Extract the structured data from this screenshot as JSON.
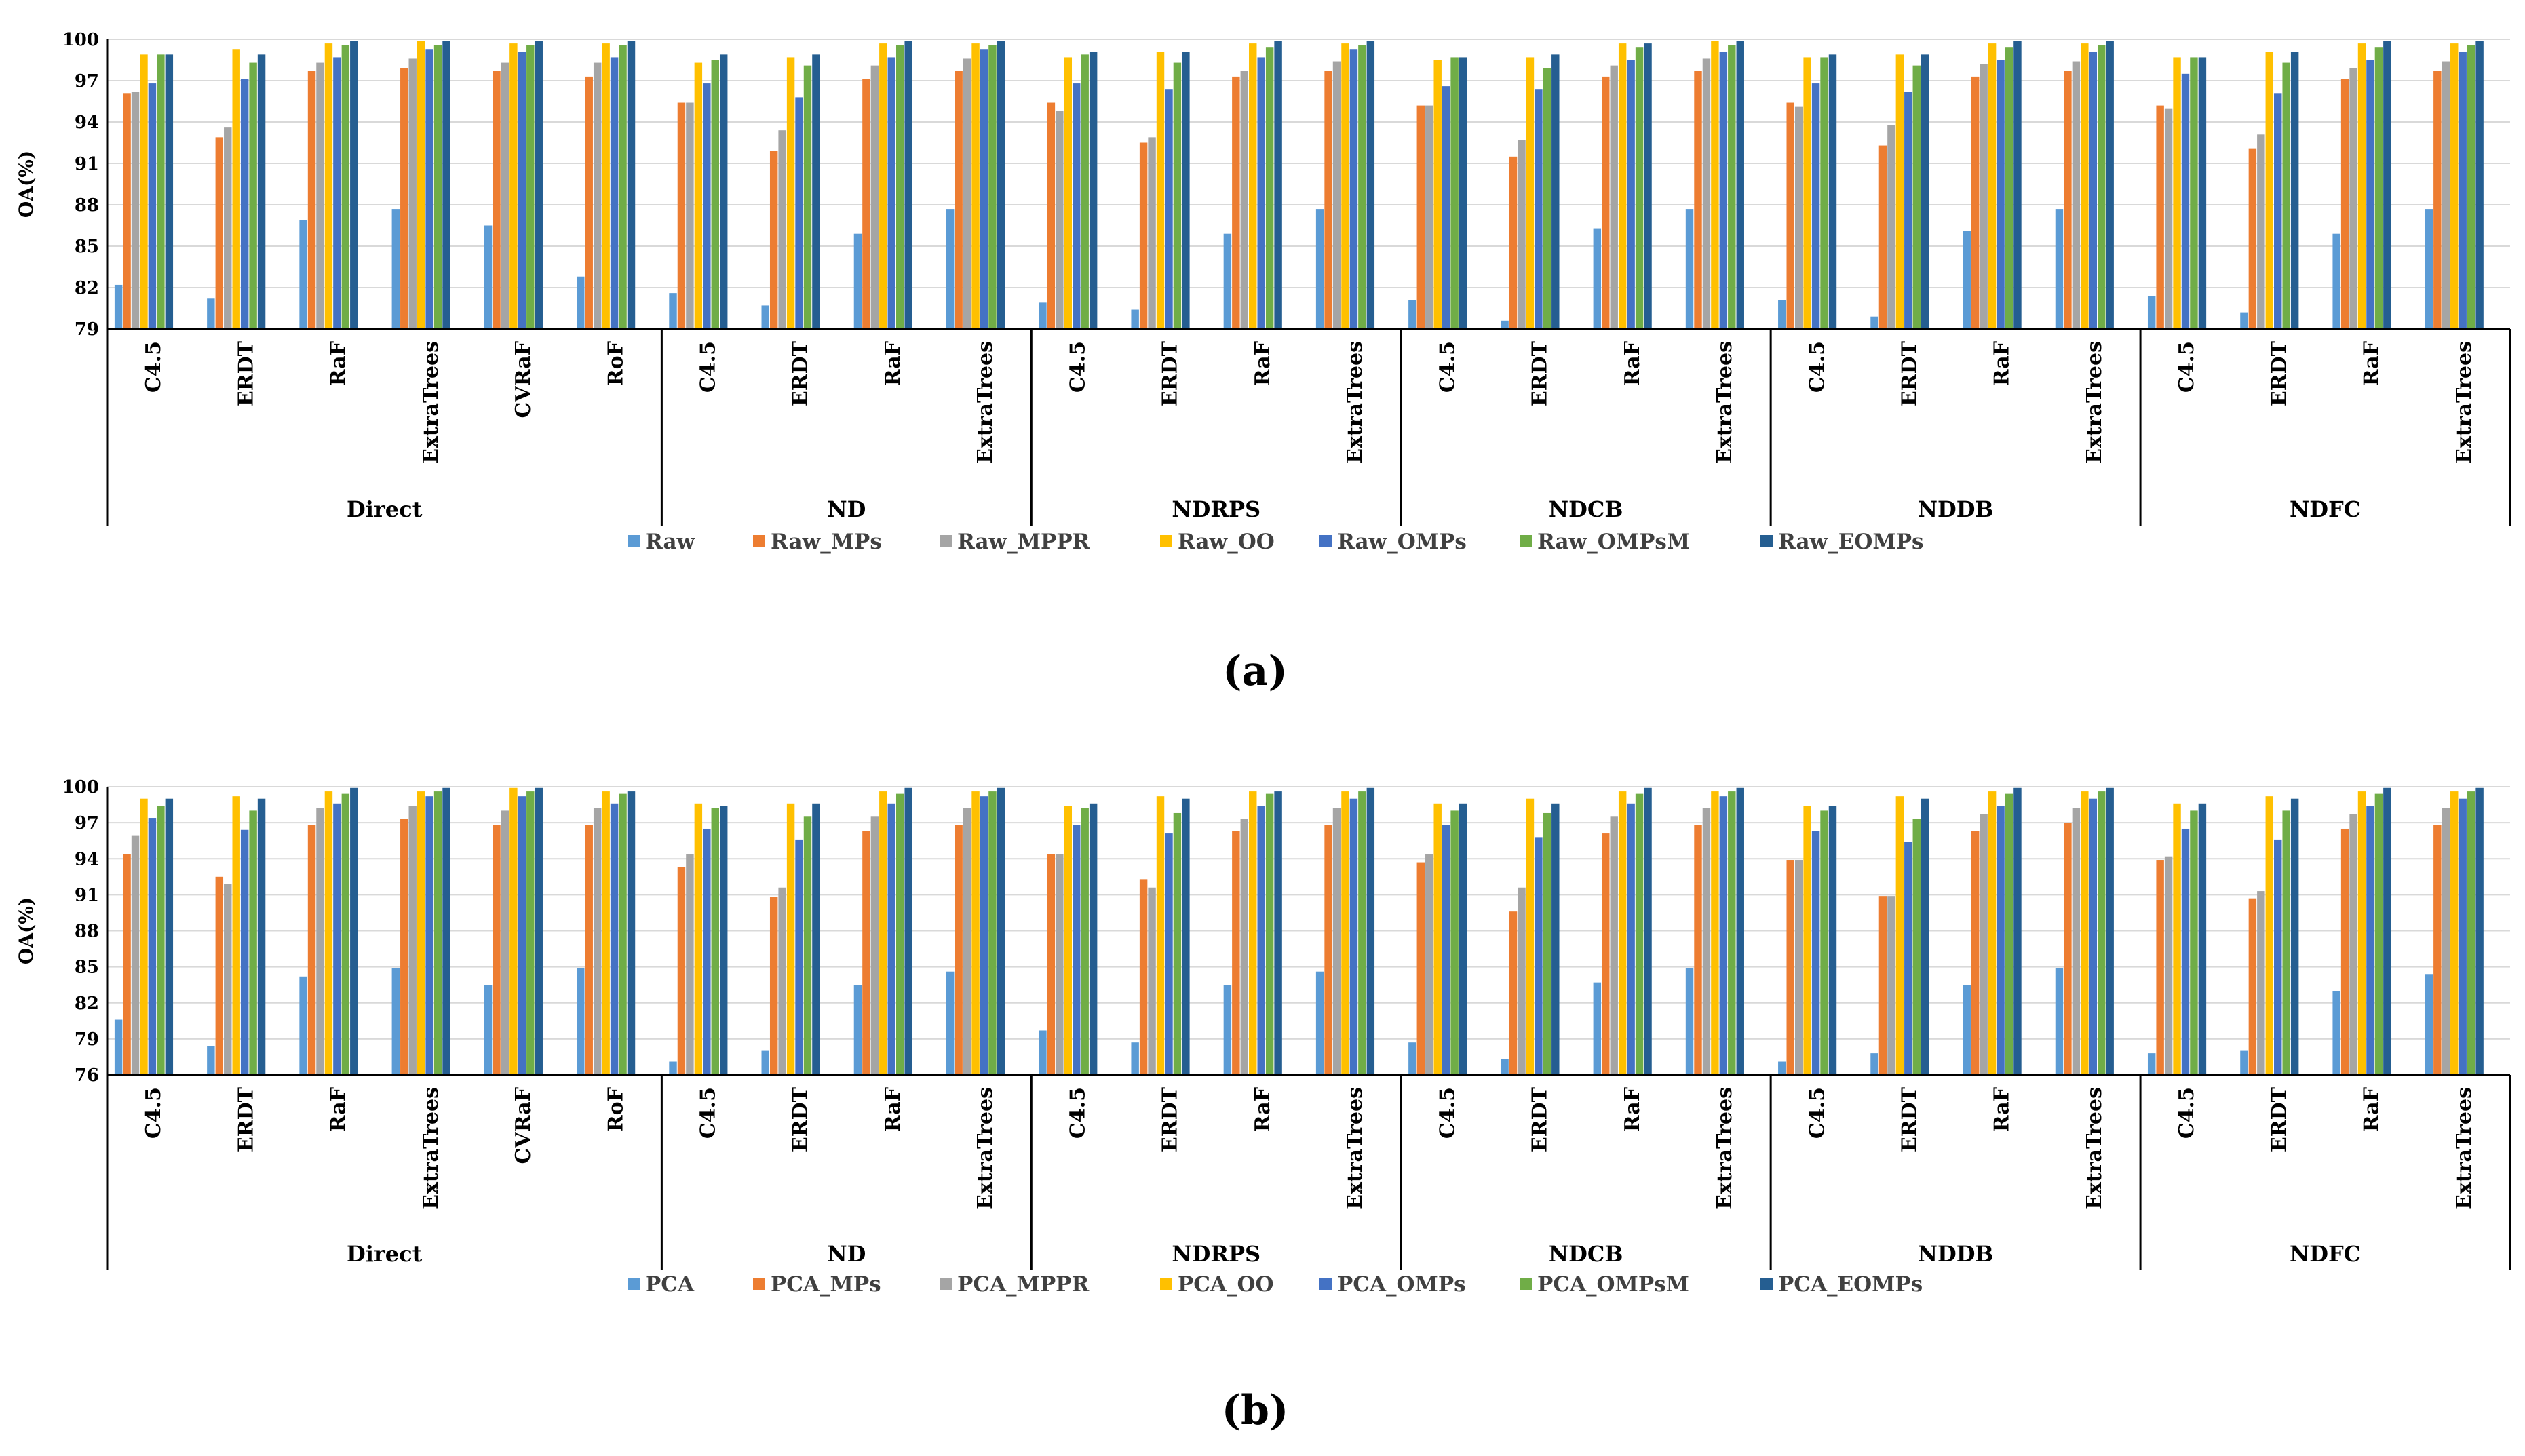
{
  "chart_data": [
    {
      "type": "bar",
      "panel_label": "(a)",
      "ylabel": "OA(%)",
      "ylim": [
        79,
        100
      ],
      "yticks": [
        79,
        82,
        85,
        88,
        91,
        94,
        97,
        100
      ],
      "groups": [
        {
          "name": "Direct",
          "categories": [
            "C4.5",
            "ERDT",
            "RaF",
            "ExtraTrees",
            "CVRaF",
            "RoF"
          ]
        },
        {
          "name": "ND",
          "categories": [
            "C4.5",
            "ERDT",
            "RaF",
            "ExtraTrees"
          ]
        },
        {
          "name": "NDRPS",
          "categories": [
            "C4.5",
            "ERDT",
            "RaF",
            "ExtraTrees"
          ]
        },
        {
          "name": "NDCB",
          "categories": [
            "C4.5",
            "ERDT",
            "RaF",
            "ExtraTrees"
          ]
        },
        {
          "name": "NDDB",
          "categories": [
            "C4.5",
            "ERDT",
            "RaF",
            "ExtraTrees"
          ]
        },
        {
          "name": "NDFC",
          "categories": [
            "C4.5",
            "ERDT",
            "RaF",
            "ExtraTrees"
          ]
        }
      ],
      "series": [
        {
          "name": "Raw",
          "color": "#5B9BD5",
          "values": [
            82.2,
            81.2,
            86.9,
            87.7,
            86.5,
            82.8,
            81.6,
            80.7,
            85.9,
            87.7,
            80.9,
            80.4,
            85.9,
            87.7,
            81.1,
            79.6,
            86.3,
            87.7,
            81.1,
            79.9,
            86.1,
            87.7,
            81.4,
            80.2,
            85.9,
            87.7
          ]
        },
        {
          "name": "Raw_MPs",
          "color": "#ED7D31",
          "values": [
            96.1,
            92.9,
            97.7,
            97.9,
            97.7,
            97.3,
            95.4,
            91.9,
            97.1,
            97.7,
            95.4,
            92.5,
            97.3,
            97.7,
            95.2,
            91.5,
            97.3,
            97.7,
            95.4,
            92.3,
            97.3,
            97.7,
            95.2,
            92.1,
            97.1,
            97.7
          ]
        },
        {
          "name": "Raw_MPPR",
          "color": "#A5A5A5",
          "values": [
            96.2,
            93.6,
            98.3,
            98.6,
            98.3,
            98.3,
            95.4,
            93.4,
            98.1,
            98.6,
            94.8,
            92.9,
            97.7,
            98.4,
            95.2,
            92.7,
            98.1,
            98.6,
            95.1,
            93.8,
            98.2,
            98.4,
            95.0,
            93.1,
            97.9,
            98.4
          ]
        },
        {
          "name": "Raw_OO",
          "color": "#FFC000",
          "values": [
            98.9,
            99.3,
            99.7,
            99.9,
            99.7,
            99.7,
            98.3,
            98.7,
            99.7,
            99.7,
            98.7,
            99.1,
            99.7,
            99.7,
            98.5,
            98.7,
            99.7,
            99.9,
            98.7,
            98.9,
            99.7,
            99.7,
            98.7,
            99.1,
            99.7,
            99.7
          ]
        },
        {
          "name": "Raw_OMPs",
          "color": "#4472C4",
          "values": [
            96.8,
            97.1,
            98.7,
            99.3,
            99.1,
            98.7,
            96.8,
            95.8,
            98.7,
            99.3,
            96.8,
            96.4,
            98.7,
            99.3,
            96.6,
            96.4,
            98.5,
            99.1,
            96.8,
            96.2,
            98.5,
            99.1,
            97.5,
            96.1,
            98.5,
            99.1
          ]
        },
        {
          "name": "Raw_OMPsM",
          "color": "#70AD47",
          "values": [
            98.9,
            98.3,
            99.6,
            99.6,
            99.6,
            99.6,
            98.5,
            98.1,
            99.6,
            99.6,
            98.9,
            98.3,
            99.4,
            99.6,
            98.7,
            97.9,
            99.4,
            99.6,
            98.7,
            98.1,
            99.4,
            99.6,
            98.7,
            98.3,
            99.4,
            99.6
          ]
        },
        {
          "name": "Raw_EOMPs",
          "color": "#255E91",
          "values": [
            98.9,
            98.9,
            99.9,
            99.9,
            99.9,
            99.9,
            98.9,
            98.9,
            99.9,
            99.9,
            99.1,
            99.1,
            99.9,
            99.9,
            98.7,
            98.9,
            99.7,
            99.9,
            98.9,
            98.9,
            99.9,
            99.9,
            98.7,
            99.1,
            99.9,
            99.9
          ]
        }
      ]
    },
    {
      "type": "bar",
      "panel_label": "(b)",
      "ylabel": "OA(%)",
      "ylim": [
        76,
        100
      ],
      "yticks": [
        76,
        79,
        82,
        85,
        88,
        91,
        94,
        97,
        100
      ],
      "groups": [
        {
          "name": "Direct",
          "categories": [
            "C4.5",
            "ERDT",
            "RaF",
            "ExtraTrees",
            "CVRaF",
            "RoF"
          ]
        },
        {
          "name": "ND",
          "categories": [
            "C4.5",
            "ERDT",
            "RaF",
            "ExtraTrees"
          ]
        },
        {
          "name": "NDRPS",
          "categories": [
            "C4.5",
            "ERDT",
            "RaF",
            "ExtraTrees"
          ]
        },
        {
          "name": "NDCB",
          "categories": [
            "C4.5",
            "ERDT",
            "RaF",
            "ExtraTrees"
          ]
        },
        {
          "name": "NDDB",
          "categories": [
            "C4.5",
            "ERDT",
            "RaF",
            "ExtraTrees"
          ]
        },
        {
          "name": "NDFC",
          "categories": [
            "C4.5",
            "ERDT",
            "RaF",
            "ExtraTrees"
          ]
        }
      ],
      "series": [
        {
          "name": "PCA",
          "color": "#5B9BD5",
          "values": [
            80.6,
            78.4,
            84.2,
            84.9,
            83.5,
            84.9,
            77.1,
            78.0,
            83.5,
            84.6,
            79.7,
            78.7,
            83.5,
            84.6,
            78.7,
            77.3,
            83.7,
            84.9,
            77.1,
            77.8,
            83.5,
            84.9,
            77.8,
            78.0,
            83.0,
            84.4
          ]
        },
        {
          "name": "PCA_MPs",
          "color": "#ED7D31",
          "values": [
            94.4,
            92.5,
            96.8,
            97.3,
            96.8,
            96.8,
            93.3,
            90.8,
            96.3,
            96.8,
            94.4,
            92.3,
            96.3,
            96.8,
            93.7,
            89.6,
            96.1,
            96.8,
            93.9,
            90.9,
            96.3,
            97.0,
            93.9,
            90.7,
            96.5,
            96.8
          ]
        },
        {
          "name": "PCA_MPPR",
          "color": "#A5A5A5",
          "values": [
            95.9,
            91.9,
            98.2,
            98.4,
            98.0,
            98.2,
            94.4,
            91.6,
            97.5,
            98.2,
            94.4,
            91.6,
            97.3,
            98.2,
            94.4,
            91.6,
            97.5,
            98.2,
            93.9,
            90.9,
            97.7,
            98.2,
            94.2,
            91.3,
            97.7,
            98.2
          ]
        },
        {
          "name": "PCA_OO",
          "color": "#FFC000",
          "values": [
            99.0,
            99.2,
            99.6,
            99.6,
            99.9,
            99.6,
            98.6,
            98.6,
            99.6,
            99.6,
            98.4,
            99.2,
            99.6,
            99.6,
            98.6,
            99.0,
            99.6,
            99.6,
            98.4,
            99.2,
            99.6,
            99.6,
            98.6,
            99.2,
            99.6,
            99.6
          ]
        },
        {
          "name": "PCA_OMPs",
          "color": "#4472C4",
          "values": [
            97.4,
            96.4,
            98.6,
            99.2,
            99.2,
            98.6,
            96.5,
            95.6,
            98.6,
            99.2,
            96.8,
            96.1,
            98.4,
            99.0,
            96.8,
            95.8,
            98.6,
            99.2,
            96.3,
            95.4,
            98.4,
            99.0,
            96.5,
            95.6,
            98.4,
            99.0
          ]
        },
        {
          "name": "PCA_OMPsM",
          "color": "#70AD47",
          "values": [
            98.4,
            98.0,
            99.4,
            99.6,
            99.6,
            99.4,
            98.2,
            97.5,
            99.4,
            99.6,
            98.2,
            97.8,
            99.4,
            99.6,
            98.0,
            97.8,
            99.4,
            99.6,
            98.0,
            97.3,
            99.4,
            99.6,
            98.0,
            98.0,
            99.4,
            99.6
          ]
        },
        {
          "name": "PCA_EOMPs",
          "color": "#255E91",
          "values": [
            99.0,
            99.0,
            99.9,
            99.9,
            99.9,
            99.6,
            98.4,
            98.6,
            99.9,
            99.9,
            98.6,
            99.0,
            99.6,
            99.9,
            98.6,
            98.6,
            99.9,
            99.9,
            98.4,
            99.0,
            99.9,
            99.9,
            98.6,
            99.0,
            99.9,
            99.9
          ]
        }
      ]
    }
  ]
}
